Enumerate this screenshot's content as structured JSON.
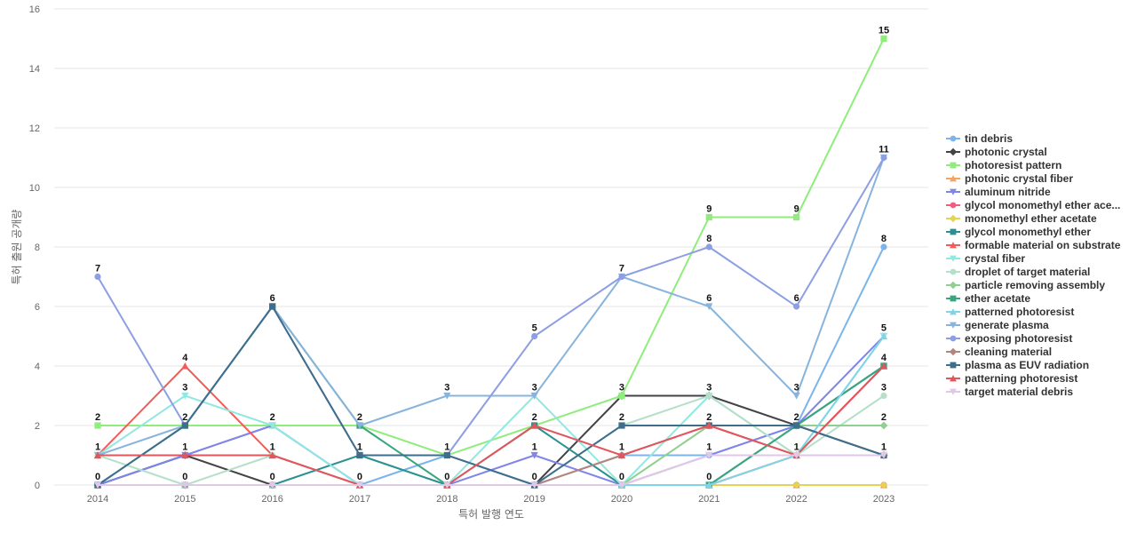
{
  "chart_data": {
    "type": "line",
    "title": "",
    "xlabel": "특허 발행 연도",
    "ylabel": "특허 출원 공개량",
    "ylim": [
      0,
      16
    ],
    "yticks": [
      0,
      2,
      4,
      6,
      8,
      10,
      12,
      14,
      16
    ],
    "grid": true,
    "legend_position": "right",
    "x": [
      "2014",
      "2015",
      "2016",
      "2017",
      "2018",
      "2019",
      "2020",
      "2021",
      "2022",
      "2023"
    ],
    "series": [
      {
        "name": "tin debris",
        "color": "#7cb5ec",
        "marker": "circle",
        "values": [
          0,
          1,
          2,
          0,
          1,
          0,
          1,
          1,
          2,
          8
        ]
      },
      {
        "name": "photonic crystal",
        "color": "#434348",
        "marker": "diamond",
        "values": [
          0,
          1,
          0,
          0,
          0,
          0,
          3,
          3,
          2,
          1
        ]
      },
      {
        "name": "photoresist pattern",
        "color": "#90ed7d",
        "marker": "square",
        "values": [
          2,
          2,
          2,
          2,
          1,
          2,
          3,
          9,
          9,
          15
        ]
      },
      {
        "name": "photonic crystal fiber",
        "color": "#f7a35c",
        "marker": "triangle",
        "values": [
          0,
          0,
          0,
          0,
          0,
          0,
          0,
          0,
          0,
          0
        ]
      },
      {
        "name": "aluminum nitride",
        "color": "#8085e9",
        "marker": "triangle-down",
        "values": [
          0,
          1,
          2,
          0,
          0,
          1,
          0,
          1,
          2,
          5
        ]
      },
      {
        "name": "glycol monomethyl ether ace...",
        "color": "#f15c80",
        "marker": "circle",
        "values": [
          0,
          0,
          0,
          0,
          0,
          0,
          0,
          0,
          0,
          0
        ]
      },
      {
        "name": "monomethyl ether acetate",
        "color": "#e4d354",
        "marker": "diamond",
        "values": [
          0,
          0,
          0,
          0,
          0,
          0,
          0,
          0,
          0,
          0
        ]
      },
      {
        "name": "glycol monomethyl ether",
        "color": "#2b908f",
        "marker": "square",
        "values": [
          0,
          0,
          0,
          1,
          0,
          2,
          0,
          0,
          2,
          4
        ]
      },
      {
        "name": "formable material on substrate",
        "color": "#f45b5b",
        "marker": "triangle",
        "values": [
          1,
          4,
          1,
          0,
          0,
          0,
          0,
          0,
          1,
          4
        ]
      },
      {
        "name": "crystal fiber",
        "color": "#91e8e1",
        "marker": "triangle-down",
        "values": [
          1,
          3,
          2,
          0,
          0,
          3,
          0,
          3,
          1,
          5
        ]
      },
      {
        "name": "droplet of target material",
        "color": "#b5dfc8",
        "marker": "circle",
        "values": [
          1,
          0,
          1,
          0,
          0,
          0,
          2,
          3,
          1,
          3
        ]
      },
      {
        "name": "particle removing assembly",
        "color": "#8fcf8f",
        "marker": "diamond",
        "values": [
          0,
          0,
          0,
          0,
          0,
          0,
          0,
          2,
          2,
          2
        ]
      },
      {
        "name": "ether acetate",
        "color": "#3aa57f",
        "marker": "square",
        "values": [
          0,
          2,
          6,
          2,
          0,
          0,
          0,
          0,
          2,
          4
        ]
      },
      {
        "name": "patterned photoresist",
        "color": "#7fd4e8",
        "marker": "triangle",
        "values": [
          0,
          0,
          0,
          0,
          0,
          0,
          0,
          0,
          1,
          5
        ]
      },
      {
        "name": "generate plasma",
        "color": "#88b4dc",
        "marker": "triangle-down",
        "values": [
          1,
          2,
          6,
          2,
          3,
          3,
          7,
          6,
          3,
          11
        ]
      },
      {
        "name": "exposing photoresist",
        "color": "#8e9ee3",
        "marker": "circle",
        "values": [
          7,
          2,
          6,
          1,
          1,
          5,
          7,
          8,
          6,
          11
        ]
      },
      {
        "name": "cleaning material",
        "color": "#b5857a",
        "marker": "diamond",
        "values": [
          0,
          0,
          0,
          0,
          0,
          0,
          1,
          2,
          1,
          1
        ]
      },
      {
        "name": "plasma as EUV radiation",
        "color": "#3f6e8c",
        "marker": "square",
        "values": [
          0,
          2,
          6,
          1,
          1,
          0,
          2,
          2,
          2,
          1
        ]
      },
      {
        "name": "patterning photoresist",
        "color": "#e3555c",
        "marker": "triangle",
        "values": [
          1,
          1,
          1,
          0,
          0,
          2,
          1,
          2,
          1,
          4
        ]
      },
      {
        "name": "target material debris",
        "color": "#e1c8e6",
        "marker": "triangle-down",
        "values": [
          0,
          0,
          0,
          0,
          0,
          0,
          0,
          1,
          1,
          1
        ]
      }
    ],
    "point_labels": [
      {
        "x": "2014",
        "values": [
          "7",
          "2",
          "1",
          "0"
        ]
      },
      {
        "x": "2015",
        "values": [
          "4",
          "3",
          "2",
          "1",
          "0"
        ]
      },
      {
        "x": "2016",
        "values": [
          "6",
          "2",
          "1",
          "0"
        ]
      },
      {
        "x": "2017",
        "values": [
          "2",
          "1",
          "0"
        ]
      },
      {
        "x": "2018",
        "values": [
          "3",
          "1",
          "0"
        ]
      },
      {
        "x": "2019",
        "values": [
          "5",
          "3",
          "2",
          "1",
          "0"
        ]
      },
      {
        "x": "2020",
        "values": [
          "7",
          "3",
          "2",
          "1",
          "0"
        ]
      },
      {
        "x": "2021",
        "values": [
          "9",
          "8",
          "6",
          "3",
          "2",
          "1",
          "0"
        ]
      },
      {
        "x": "2022",
        "values": [
          "9",
          "6",
          "3",
          "2",
          "1"
        ]
      },
      {
        "x": "2023",
        "values": [
          "15",
          "11",
          "8",
          "5",
          "4",
          "3",
          "2",
          "1"
        ]
      }
    ]
  }
}
